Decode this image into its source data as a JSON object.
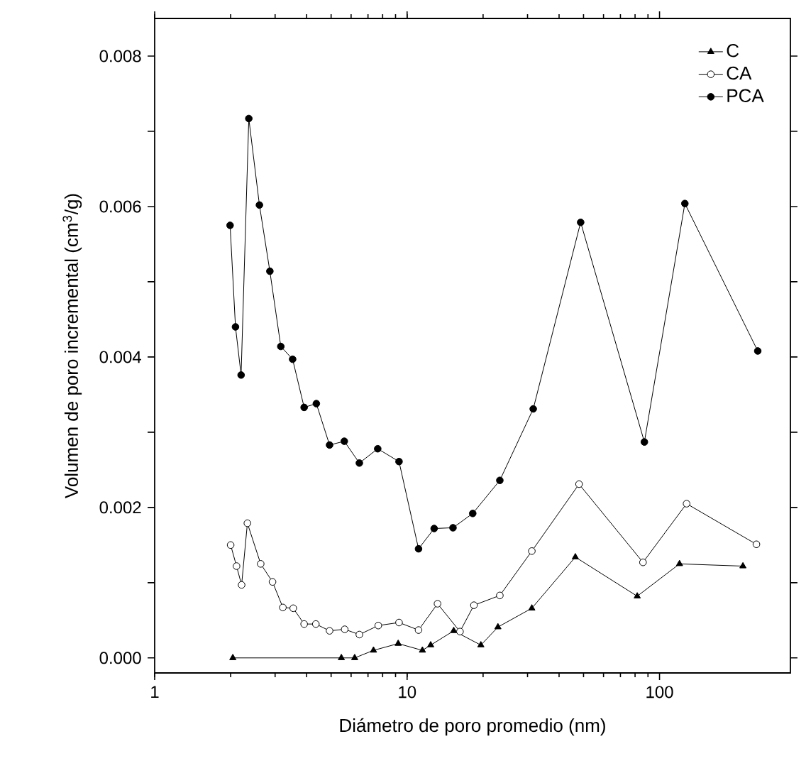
{
  "chart_data": {
    "type": "line",
    "xlabel": "Diámetro de poro promedio (nm)",
    "ylabel": "Volumen de poro incremental (cm$^{3}$/g)",
    "log": "x",
    "xlim": [
      1,
      330
    ],
    "xticks": [
      1,
      10,
      100
    ],
    "ylim": [
      -0.0002,
      0.0085
    ],
    "yticks": [
      {
        "value": 0,
        "label": "0.000"
      },
      {
        "value": 0.001,
        "label": null
      },
      {
        "value": 0.002,
        "label": "0.002"
      },
      {
        "value": 0.003,
        "label": null
      },
      {
        "value": 0.004,
        "label": "0.004"
      },
      {
        "value": 0.005,
        "label": null
      },
      {
        "value": 0.006,
        "label": "0.006"
      },
      {
        "value": 0.007,
        "label": null
      },
      {
        "value": 0.008,
        "label": "0.008"
      }
    ],
    "grid": false,
    "legend": "top right",
    "line_style": "solid",
    "series": [
      {
        "name": "C",
        "color": "#000000",
        "marker": "triangle",
        "x": [
          2.04,
          5.49,
          6.2,
          7.36,
          9.22,
          11.5,
          12.4,
          15.3,
          19.6,
          22.9,
          31.2,
          46.4,
          81.6,
          120,
          214
        ],
        "values": [
          0,
          0,
          0,
          0.0001,
          0.00019,
          0.0001,
          0.00017,
          0.00036,
          0.00017,
          0.00041,
          0.00066,
          0.00134,
          0.00082,
          0.00125,
          0.00122
        ]
      },
      {
        "name": "CA",
        "color": "#ffffff",
        "marker": "circle",
        "x": [
          2.0,
          2.11,
          2.21,
          2.33,
          2.63,
          2.93,
          3.22,
          3.54,
          3.91,
          4.35,
          4.93,
          5.66,
          6.47,
          7.69,
          9.29,
          11.1,
          13.2,
          16.2,
          18.4,
          23.3,
          31.2,
          48.0,
          86.0,
          128,
          242
        ],
        "values": [
          0.0015,
          0.00122,
          0.00097,
          0.00179,
          0.00125,
          0.00101,
          0.00067,
          0.00066,
          0.00045,
          0.00045,
          0.00036,
          0.00038,
          0.00031,
          0.00043,
          0.00047,
          0.00037,
          0.00072,
          0.00035,
          0.0007,
          0.00083,
          0.00142,
          0.00231,
          0.00127,
          0.00205,
          0.00151
        ]
      },
      {
        "name": "PCA",
        "color": "#000000",
        "marker": "circle",
        "x": [
          1.99,
          2.09,
          2.2,
          2.36,
          2.6,
          2.86,
          3.16,
          3.52,
          3.91,
          4.37,
          4.93,
          5.64,
          6.47,
          7.65,
          9.29,
          11.1,
          12.8,
          15.2,
          18.2,
          23.3,
          31.6,
          48.7,
          87.1,
          126,
          245
        ],
        "values": [
          0.00575,
          0.0044,
          0.00376,
          0.00717,
          0.00602,
          0.00514,
          0.00414,
          0.00397,
          0.00333,
          0.00338,
          0.00283,
          0.00288,
          0.00259,
          0.00278,
          0.00261,
          0.00145,
          0.00172,
          0.00173,
          0.00192,
          0.00236,
          0.00331,
          0.00579,
          0.00287,
          0.00604,
          0.00408
        ]
      }
    ]
  }
}
